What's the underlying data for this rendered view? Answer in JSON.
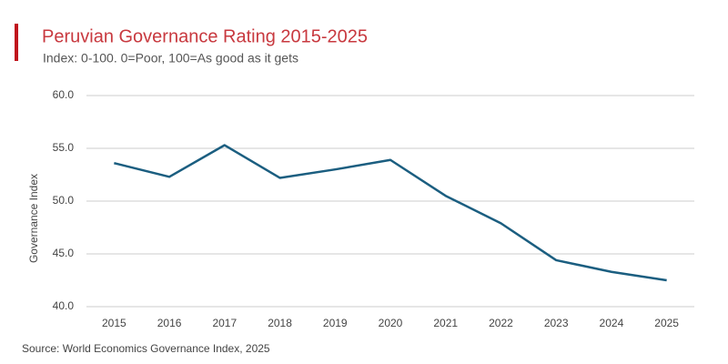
{
  "chart_data": {
    "type": "line",
    "title": "Peruvian Governance Rating 2015-2025",
    "subtitle": "Index: 0-100. 0=Poor, 100=As good as it gets",
    "y_label": "Governance Index",
    "source": "Source: World Economics Governance Index, 2025",
    "categories": [
      "2015",
      "2016",
      "2017",
      "2018",
      "2019",
      "2020",
      "2021",
      "2022",
      "2023",
      "2024",
      "2025"
    ],
    "series": [
      {
        "color": "#1b5e80",
        "values": [
          53.6,
          52.3,
          55.3,
          52.2,
          53.0,
          53.9,
          50.5,
          47.9,
          44.4,
          43.3,
          42.5
        ]
      }
    ],
    "ylim": [
      40,
      60
    ],
    "yticks": [
      {
        "value": 40,
        "label": "40.0"
      },
      {
        "value": 45,
        "label": "45.0"
      },
      {
        "value": 50,
        "label": "50.0"
      },
      {
        "value": 55,
        "label": "55.0"
      },
      {
        "value": 60,
        "label": "60.0"
      }
    ],
    "grid": true
  }
}
